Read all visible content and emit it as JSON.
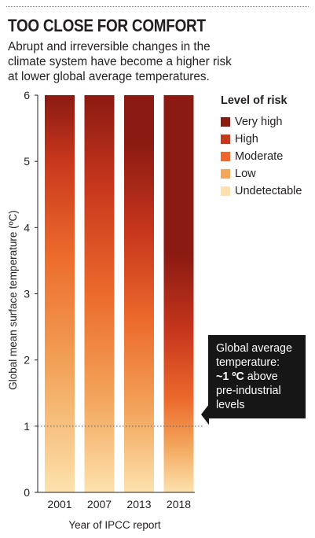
{
  "title": "TOO CLOSE FOR COMFORT",
  "subtitle_lines": [
    "Abrupt and irreversible changes in the",
    "climate system have become a higher risk",
    "at lower global average temperatures."
  ],
  "legend": {
    "title": "Level of risk",
    "items": [
      {
        "label": "Very high",
        "color": "#8a1a12"
      },
      {
        "label": "High",
        "color": "#c9371d"
      },
      {
        "label": "Moderate",
        "color": "#ec6a2c"
      },
      {
        "label": "Low",
        "color": "#f3a65c"
      },
      {
        "label": "Undetectable",
        "color": "#fde2ae"
      }
    ]
  },
  "callout": {
    "lines": [
      "Global average",
      "temperature:",
      "pre-industrial",
      "levels"
    ],
    "bold_value": "~1 ºC",
    "after_bold": " above"
  },
  "chart_data": {
    "type": "bar",
    "xlabel": "Year of IPCC report",
    "ylabel": "Global mean surface temperature (ºC)",
    "categories": [
      "2001",
      "2007",
      "2013",
      "2018"
    ],
    "ylim": [
      0,
      6
    ],
    "yticks": [
      "0",
      "1",
      "2",
      "3",
      "4",
      "5",
      "6"
    ],
    "reference_line": {
      "y": 1
    },
    "risk_levels": [
      "Undetectable",
      "Low",
      "Moderate",
      "High",
      "Very high"
    ],
    "bars": [
      {
        "year": "2001",
        "stops": [
          {
            "t": 0,
            "level": "Undetectable"
          },
          {
            "t": 1.8,
            "level": "Low"
          },
          {
            "t": 3.6,
            "level": "Moderate"
          },
          {
            "t": 5.0,
            "level": "High"
          },
          {
            "t": 6,
            "level": "Very high"
          }
        ]
      },
      {
        "year": "2007",
        "stops": [
          {
            "t": 0,
            "level": "Undetectable"
          },
          {
            "t": 1.4,
            "level": "Low"
          },
          {
            "t": 3.0,
            "level": "Moderate"
          },
          {
            "t": 4.6,
            "level": "High"
          },
          {
            "t": 6,
            "level": "Very high"
          }
        ]
      },
      {
        "year": "2013",
        "stops": [
          {
            "t": 0,
            "level": "Undetectable"
          },
          {
            "t": 1.2,
            "level": "Low"
          },
          {
            "t": 2.6,
            "level": "Moderate"
          },
          {
            "t": 3.9,
            "level": "High"
          },
          {
            "t": 5.3,
            "level": "Very high"
          }
        ]
      },
      {
        "year": "2018",
        "stops": [
          {
            "t": 0,
            "level": "Undetectable"
          },
          {
            "t": 0.7,
            "level": "Low"
          },
          {
            "t": 1.4,
            "level": "Moderate"
          },
          {
            "t": 2.4,
            "level": "High"
          },
          {
            "t": 3.6,
            "level": "Very high"
          }
        ]
      }
    ]
  }
}
